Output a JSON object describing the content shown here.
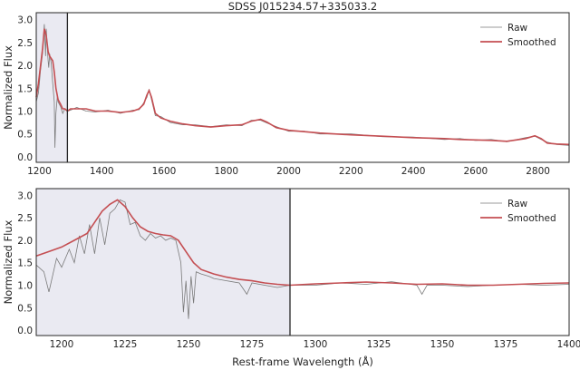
{
  "chart_data": [
    {
      "type": "line",
      "title": "SDSS J015234.57+335033.2",
      "xlabel": "",
      "ylabel": "Normalized Flux",
      "xlim": [
        1190,
        2900
      ],
      "ylim": [
        -0.12,
        3.15
      ],
      "xticks": [
        1200,
        1400,
        1600,
        1800,
        2000,
        2200,
        2400,
        2600,
        2800
      ],
      "yticks": [
        0.0,
        0.5,
        1.0,
        1.5,
        2.0,
        2.5,
        3.0
      ],
      "shaded_region": [
        1190,
        1290
      ],
      "vline": 1290,
      "legend": {
        "position": "top-right",
        "entries": [
          "Raw",
          "Smoothed"
        ]
      },
      "colors": {
        "raw": "#7a7a7a",
        "smoothed": "#c44e52",
        "shade": "#eaeaf2"
      },
      "series": [
        {
          "name": "Smoothed",
          "x": [
            1190,
            1197,
            1203,
            1210,
            1216,
            1222,
            1228,
            1233,
            1238,
            1243,
            1248,
            1253,
            1260,
            1268,
            1275,
            1282,
            1290,
            1300,
            1320,
            1350,
            1380,
            1420,
            1460,
            1500,
            1520,
            1535,
            1545,
            1552,
            1560,
            1572,
            1590,
            1620,
            1660,
            1700,
            1750,
            1800,
            1850,
            1880,
            1910,
            1930,
            1960,
            2000,
            2050,
            2100,
            2200,
            2300,
            2400,
            2500,
            2550,
            2600,
            2650,
            2700,
            2760,
            2790,
            2810,
            2830,
            2860,
            2900
          ],
          "y": [
            1.3,
            1.6,
            1.95,
            2.35,
            2.8,
            2.65,
            2.3,
            2.2,
            2.15,
            2.1,
            1.85,
            1.5,
            1.25,
            1.15,
            1.05,
            1.05,
            1.0,
            1.05,
            1.05,
            1.05,
            1.0,
            1.0,
            0.97,
            1.0,
            1.05,
            1.15,
            1.35,
            1.45,
            1.3,
            0.95,
            0.85,
            0.78,
            0.72,
            0.68,
            0.65,
            0.68,
            0.7,
            0.78,
            0.82,
            0.76,
            0.64,
            0.58,
            0.55,
            0.52,
            0.48,
            0.45,
            0.42,
            0.4,
            0.38,
            0.37,
            0.36,
            0.34,
            0.4,
            0.46,
            0.4,
            0.3,
            0.28,
            0.27
          ]
        },
        {
          "name": "Raw",
          "x": [
            1190,
            1197,
            1200,
            1203,
            1210,
            1216,
            1220,
            1222,
            1228,
            1230,
            1233,
            1238,
            1243,
            1248,
            1250,
            1253,
            1258,
            1260,
            1268,
            1275,
            1282,
            1290,
            1300,
            1320,
            1350,
            1380,
            1420,
            1460,
            1500,
            1520,
            1535,
            1545,
            1552,
            1560,
            1572,
            1590,
            1620,
            1660,
            1700,
            1750,
            1800,
            1850,
            1880,
            1910,
            1930,
            1960,
            2000,
            2050,
            2100,
            2200,
            2300,
            2400,
            2500,
            2550,
            2600,
            2650,
            2700,
            2760,
            2790,
            2810,
            2830,
            2860,
            2900
          ],
          "y": [
            1.2,
            1.4,
            1.6,
            1.85,
            2.25,
            2.9,
            2.2,
            2.8,
            2.1,
            1.95,
            2.25,
            2.05,
            1.6,
            1.2,
            0.2,
            0.95,
            1.35,
            1.2,
            1.1,
            0.95,
            1.05,
            1.0,
            1.02,
            1.08,
            1.0,
            0.98,
            1.02,
            0.95,
            1.02,
            1.03,
            1.18,
            1.3,
            1.48,
            1.25,
            0.9,
            0.88,
            0.75,
            0.7,
            0.7,
            0.66,
            0.7,
            0.68,
            0.8,
            0.8,
            0.74,
            0.66,
            0.56,
            0.56,
            0.5,
            0.5,
            0.44,
            0.43,
            0.38,
            0.4,
            0.36,
            0.38,
            0.33,
            0.42,
            0.45,
            0.38,
            0.32,
            0.27,
            0.25
          ]
        }
      ]
    },
    {
      "type": "line",
      "title": "",
      "xlabel": "Rest-frame Wavelength (Å)",
      "ylabel": "Normalized Flux",
      "xlim": [
        1190,
        1400
      ],
      "ylim": [
        -0.12,
        3.15
      ],
      "xticks": [
        1200,
        1225,
        1250,
        1275,
        1300,
        1325,
        1350,
        1375,
        1400
      ],
      "yticks": [
        0.0,
        0.5,
        1.0,
        1.5,
        2.0,
        2.5,
        3.0
      ],
      "shaded_region": [
        1190,
        1290
      ],
      "vline": 1290,
      "legend": {
        "position": "top-right",
        "entries": [
          "Raw",
          "Smoothed"
        ]
      },
      "colors": {
        "raw": "#7a7a7a",
        "smoothed": "#c44e52",
        "shade": "#eaeaf2"
      },
      "series": [
        {
          "name": "Smoothed",
          "x": [
            1190,
            1195,
            1200,
            1205,
            1210,
            1213,
            1216,
            1219,
            1222,
            1225,
            1228,
            1231,
            1234,
            1237,
            1240,
            1243,
            1246,
            1249,
            1252,
            1255,
            1260,
            1265,
            1270,
            1275,
            1280,
            1285,
            1290,
            1300,
            1310,
            1320,
            1330,
            1340,
            1350,
            1360,
            1370,
            1380,
            1390,
            1400
          ],
          "y": [
            1.65,
            1.75,
            1.85,
            2.0,
            2.15,
            2.4,
            2.65,
            2.8,
            2.9,
            2.75,
            2.5,
            2.3,
            2.2,
            2.15,
            2.12,
            2.1,
            2.0,
            1.75,
            1.5,
            1.35,
            1.25,
            1.18,
            1.13,
            1.1,
            1.05,
            1.02,
            1.0,
            1.03,
            1.05,
            1.07,
            1.05,
            1.02,
            1.03,
            1.0,
            1.0,
            1.02,
            1.04,
            1.05
          ]
        },
        {
          "name": "Raw",
          "x": [
            1190,
            1193,
            1195,
            1198,
            1200,
            1203,
            1205,
            1207,
            1209,
            1211,
            1213,
            1215,
            1217,
            1219,
            1221,
            1223,
            1225,
            1227,
            1229,
            1231,
            1233,
            1235,
            1237,
            1239,
            1241,
            1243,
            1245,
            1247,
            1248,
            1249,
            1250,
            1251,
            1252,
            1253,
            1255,
            1258,
            1260,
            1265,
            1270,
            1273,
            1275,
            1280,
            1285,
            1290,
            1300,
            1310,
            1320,
            1330,
            1340,
            1342,
            1344,
            1350,
            1360,
            1370,
            1380,
            1390,
            1400
          ],
          "y": [
            1.45,
            1.3,
            0.85,
            1.6,
            1.4,
            1.8,
            1.5,
            2.1,
            1.7,
            2.35,
            1.7,
            2.5,
            1.9,
            2.6,
            2.7,
            2.9,
            2.85,
            2.35,
            2.4,
            2.1,
            2.0,
            2.15,
            2.05,
            2.1,
            2.0,
            2.05,
            2.0,
            1.5,
            0.4,
            1.1,
            0.25,
            1.2,
            0.6,
            1.3,
            1.25,
            1.2,
            1.15,
            1.1,
            1.05,
            0.8,
            1.05,
            1.0,
            0.95,
            1.0,
            1.0,
            1.05,
            1.02,
            1.08,
            1.0,
            0.8,
            1.0,
            1.0,
            0.97,
            1.0,
            1.02,
            1.0,
            1.02
          ]
        }
      ]
    }
  ]
}
